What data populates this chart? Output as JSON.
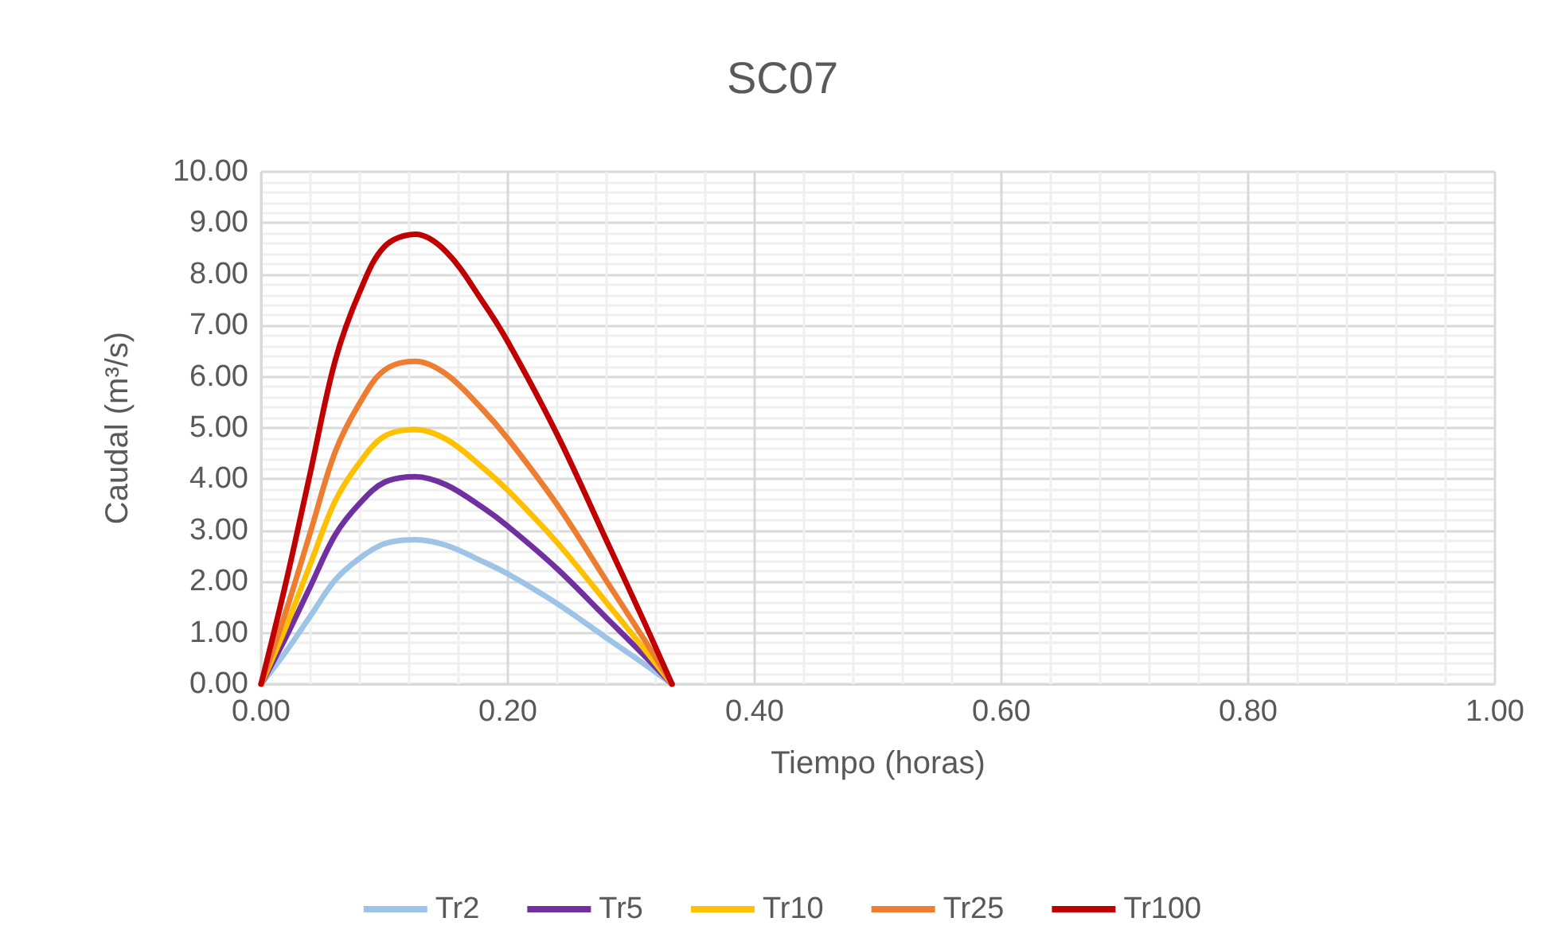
{
  "chart_data": {
    "type": "line",
    "title": "SC07",
    "xlabel": "Tiempo (horas)",
    "ylabel": "Caudal (m³/s)",
    "x": [
      0,
      0.02,
      0.04,
      0.06,
      0.08,
      0.1,
      0.125,
      0.15,
      0.18,
      0.2,
      0.24,
      0.28,
      0.31,
      0.333
    ],
    "series": [
      {
        "name": "Tr2",
        "color": "#9dc3e6",
        "values": [
          0,
          0.63,
          1.33,
          2.03,
          2.46,
          2.74,
          2.82,
          2.71,
          2.39,
          2.15,
          1.57,
          0.9,
          0.4,
          0
        ]
      },
      {
        "name": "Tr5",
        "color": "#7030a0",
        "values": [
          0,
          0.91,
          1.91,
          2.91,
          3.53,
          3.94,
          4.05,
          3.89,
          3.44,
          3.08,
          2.25,
          1.29,
          0.57,
          0
        ]
      },
      {
        "name": "Tr10",
        "color": "#ffc000",
        "values": [
          0,
          1.11,
          2.35,
          3.57,
          4.33,
          4.84,
          4.97,
          4.78,
          4.22,
          3.78,
          2.76,
          1.59,
          0.7,
          0
        ]
      },
      {
        "name": "Tr25",
        "color": "#ed7d31",
        "values": [
          0,
          1.41,
          2.97,
          4.53,
          5.49,
          6.13,
          6.3,
          6.05,
          5.35,
          4.79,
          3.5,
          2.01,
          0.89,
          0
        ]
      },
      {
        "name": "Tr100",
        "color": "#c00000",
        "values": [
          0,
          1.97,
          4.14,
          6.31,
          7.66,
          8.54,
          8.78,
          8.44,
          7.45,
          6.68,
          4.87,
          2.8,
          1.24,
          0
        ]
      }
    ],
    "xlim": [
      0,
      1
    ],
    "xticks": [
      {
        "value": 0,
        "label": "0.00"
      },
      {
        "value": 0.2,
        "label": "0.20"
      },
      {
        "value": 0.4,
        "label": "0.40"
      },
      {
        "value": 0.6,
        "label": "0.60"
      },
      {
        "value": 0.8,
        "label": "0.80"
      },
      {
        "value": 1,
        "label": "1.00"
      }
    ],
    "ylim": [
      0,
      10
    ],
    "yticks": [
      {
        "value": 0,
        "label": "0.00"
      },
      {
        "value": 1,
        "label": "1.00"
      },
      {
        "value": 2,
        "label": "2.00"
      },
      {
        "value": 3,
        "label": "3.00"
      },
      {
        "value": 4,
        "label": "4.00"
      },
      {
        "value": 5,
        "label": "5.00"
      },
      {
        "value": 6,
        "label": "6.00"
      },
      {
        "value": 7,
        "label": "7.00"
      },
      {
        "value": 8,
        "label": "8.00"
      },
      {
        "value": 9,
        "label": "9.00"
      },
      {
        "value": 10,
        "label": "10.00"
      }
    ],
    "grid": true,
    "legend": "bottom",
    "marker": "none",
    "line_style": "solid"
  }
}
